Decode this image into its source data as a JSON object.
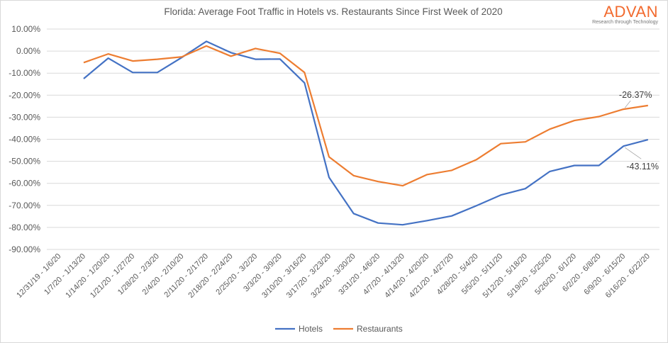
{
  "logo": {
    "text": "ADVAN",
    "tagline": "Research through Technology",
    "color": "#f26a2e"
  },
  "chart_data": {
    "type": "line",
    "title": "Florida: Average Foot Traffic in Hotels vs. Restaurants Since First Week of 2020",
    "xlabel": "",
    "ylabel": "",
    "ylim": [
      -90,
      10
    ],
    "y_ticks": [
      "10.00%",
      "0.00%",
      "-10.00%",
      "-20.00%",
      "-30.00%",
      "-40.00%",
      "-50.00%",
      "-60.00%",
      "-70.00%",
      "-80.00%",
      "-90.00%"
    ],
    "grid": true,
    "legend": "bottom",
    "categories": [
      "12/31/19 - 1/6/20",
      "1/7/20 - 1/13/20",
      "1/14/20 - 1/20/20",
      "1/21/20 - 1/27/20",
      "1/28/20 - 2/3/20",
      "2/4/20 - 2/10/20",
      "2/11/20 - 2/17/20",
      "2/18/20 - 2/24/20",
      "2/25/20 - 3/2/20",
      "3/3/20 - 3/9/20",
      "3/10/20 - 3/16/20",
      "3/17/20 - 3/23/20",
      "3/24/20 - 3/30/20",
      "3/31/20 - 4/6/20",
      "4/7/20 - 4/13/20",
      "4/14/20 - 4/20/20",
      "4/21/20 - 4/27/20",
      "4/28/20 - 5/4/20",
      "5/5/20 - 5/11/20",
      "5/12/20 - 5/18/20",
      "5/19/20 - 5/25/20",
      "5/26/20 - 6/1/20",
      "6/2/20 - 6/8/20",
      "6/9/20 - 6/15/20",
      "6/16/20 - 6/22/20"
    ],
    "series": [
      {
        "name": "Hotels",
        "color": "#4472c4",
        "values": [
          null,
          -12.5,
          -3.2,
          -9.7,
          -9.7,
          -2.9,
          4.4,
          -0.7,
          -3.7,
          -3.6,
          -14.4,
          -57.3,
          -73.7,
          -78.0,
          -78.8,
          -76.9,
          -74.8,
          -70.2,
          -65.3,
          -62.4,
          -54.6,
          -51.9,
          -51.9,
          -43.11,
          -40.2
        ]
      },
      {
        "name": "Restaurants",
        "color": "#ed7d31",
        "values": [
          null,
          -5.2,
          -1.3,
          -4.5,
          -3.7,
          -2.6,
          2.3,
          -2.3,
          1.2,
          -1.0,
          -9.7,
          -48.0,
          -56.5,
          -59.2,
          -61.1,
          -56.0,
          -54.1,
          -49.3,
          -42.0,
          -41.2,
          -35.4,
          -31.5,
          -29.7,
          -26.37,
          -24.7
        ]
      }
    ],
    "annotations": [
      {
        "series": "Restaurants",
        "category": "6/9/20 - 6/15/20",
        "text": "-26.37%"
      },
      {
        "series": "Hotels",
        "category": "6/9/20 - 6/15/20",
        "text": "-43.11%"
      }
    ]
  }
}
